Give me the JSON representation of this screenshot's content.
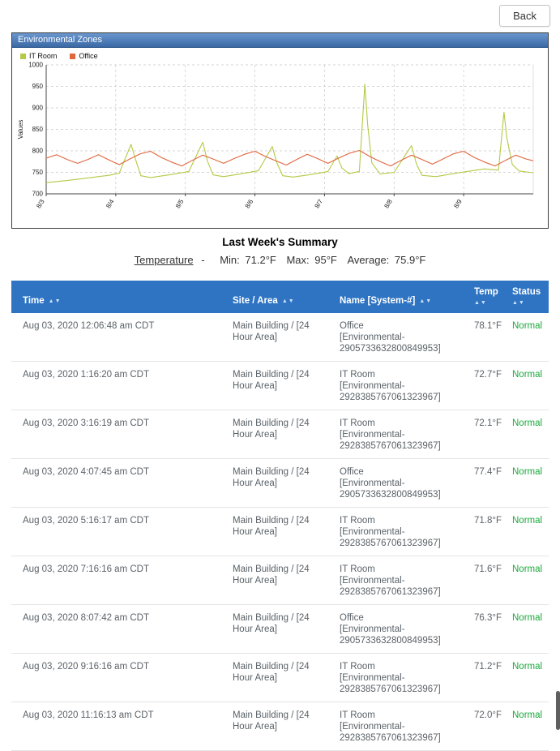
{
  "back_button": {
    "label": "Back"
  },
  "panel": {
    "title": "Environmental Zones"
  },
  "summary": {
    "title": "Last Week's Summary",
    "metric": "Temperature",
    "dash": "-",
    "min_label": "Min:",
    "min_value": "71.2°F",
    "max_label": "Max:",
    "max_value": "95°F",
    "avg_label": "Average:",
    "avg_value": "75.9°F"
  },
  "chart_data": {
    "type": "line",
    "title": "",
    "xlabel": "",
    "ylabel": "Values",
    "ylim": [
      700,
      1000
    ],
    "yticks": [
      700,
      750,
      800,
      850,
      900,
      950,
      1000
    ],
    "xlim": [
      0,
      7
    ],
    "xtick_positions": [
      0,
      1,
      2,
      3,
      4,
      5,
      6
    ],
    "xtick_labels": [
      "8/3",
      "8/4",
      "8/5",
      "8/6",
      "8/7",
      "8/8",
      "8/9"
    ],
    "grid": true,
    "legend_position": "top-left",
    "series": [
      {
        "name": "IT Room",
        "color": "#b5c944",
        "x": [
          0,
          0.3,
          0.6,
          0.9,
          1.05,
          1.22,
          1.3,
          1.36,
          1.5,
          1.8,
          2.05,
          2.25,
          2.32,
          2.4,
          2.55,
          2.85,
          3.05,
          3.25,
          3.32,
          3.4,
          3.55,
          3.85,
          4.05,
          4.18,
          4.25,
          4.35,
          4.5,
          4.58,
          4.62,
          4.68,
          4.8,
          5.0,
          5.25,
          5.32,
          5.4,
          5.6,
          5.85,
          6.05,
          6.3,
          6.5,
          6.58,
          6.62,
          6.7,
          6.8,
          6.95,
          7.0
        ],
        "y": [
          726,
          731,
          737,
          743,
          748,
          815,
          772,
          742,
          738,
          745,
          752,
          820,
          775,
          744,
          740,
          748,
          754,
          810,
          770,
          742,
          739,
          746,
          752,
          788,
          760,
          747,
          752,
          955,
          860,
          772,
          746,
          750,
          812,
          770,
          743,
          740,
          747,
          752,
          758,
          755,
          890,
          830,
          768,
          753,
          750,
          749
        ]
      },
      {
        "name": "Office",
        "color": "#e0663e",
        "x": [
          0,
          0.15,
          0.3,
          0.45,
          0.6,
          0.75,
          0.9,
          1.05,
          1.2,
          1.35,
          1.5,
          1.65,
          1.8,
          1.95,
          2.1,
          2.25,
          2.4,
          2.55,
          2.7,
          2.85,
          3.0,
          3.15,
          3.3,
          3.45,
          3.6,
          3.75,
          3.9,
          4.05,
          4.2,
          4.35,
          4.5,
          4.65,
          4.8,
          4.95,
          5.1,
          5.25,
          5.4,
          5.55,
          5.7,
          5.85,
          6.0,
          6.15,
          6.3,
          6.45,
          6.6,
          6.75,
          6.9,
          7.0
        ],
        "y": [
          783,
          791,
          780,
          771,
          780,
          791,
          779,
          768,
          781,
          793,
          799,
          785,
          774,
          765,
          778,
          790,
          781,
          771,
          782,
          792,
          799,
          787,
          777,
          767,
          780,
          792,
          782,
          771,
          783,
          794,
          801,
          787,
          775,
          765,
          778,
          790,
          780,
          769,
          781,
          793,
          799,
          785,
          774,
          765,
          778,
          790,
          781,
          777
        ]
      }
    ]
  },
  "table": {
    "status_color": "#1ba93c",
    "columns": [
      {
        "label": "Time",
        "arrows": "▲▼",
        "stacked": false
      },
      {
        "label": "Site / Area",
        "arrows": "▲▼",
        "stacked": false
      },
      {
        "label": "Name [System-#]",
        "arrows": "▲▼",
        "stacked": false
      },
      {
        "label": "Temp",
        "arrows": "▲▼",
        "stacked": true
      },
      {
        "label": "Status",
        "arrows": "▲▼",
        "stacked": true
      }
    ],
    "rows": [
      {
        "time": "Aug 03, 2020 12:06:48 am CDT",
        "site": "Main Building / [24 Hour Area]",
        "name": "Office",
        "system": "[Environmental-2905733632800849953]",
        "temp": "78.1°F",
        "status": "Normal"
      },
      {
        "time": "Aug 03, 2020 1:16:20 am CDT",
        "site": "Main Building / [24 Hour Area]",
        "name": "IT Room",
        "system": "[Environmental-2928385767061323967]",
        "temp": "72.7°F",
        "status": "Normal"
      },
      {
        "time": "Aug 03, 2020 3:16:19 am CDT",
        "site": "Main Building / [24 Hour Area]",
        "name": "IT Room",
        "system": "[Environmental-2928385767061323967]",
        "temp": "72.1°F",
        "status": "Normal"
      },
      {
        "time": "Aug 03, 2020 4:07:45 am CDT",
        "site": "Main Building / [24 Hour Area]",
        "name": "Office",
        "system": "[Environmental-2905733632800849953]",
        "temp": "77.4°F",
        "status": "Normal"
      },
      {
        "time": "Aug 03, 2020 5:16:17 am CDT",
        "site": "Main Building / [24 Hour Area]",
        "name": "IT Room",
        "system": "[Environmental-2928385767061323967]",
        "temp": "71.8°F",
        "status": "Normal"
      },
      {
        "time": "Aug 03, 2020 7:16:16 am CDT",
        "site": "Main Building / [24 Hour Area]",
        "name": "IT Room",
        "system": "[Environmental-2928385767061323967]",
        "temp": "71.6°F",
        "status": "Normal"
      },
      {
        "time": "Aug 03, 2020 8:07:42 am CDT",
        "site": "Main Building / [24 Hour Area]",
        "name": "Office",
        "system": "[Environmental-2905733632800849953]",
        "temp": "76.3°F",
        "status": "Normal"
      },
      {
        "time": "Aug 03, 2020 9:16:16 am CDT",
        "site": "Main Building / [24 Hour Area]",
        "name": "IT Room",
        "system": "[Environmental-2928385767061323967]",
        "temp": "71.2°F",
        "status": "Normal"
      },
      {
        "time": "Aug 03, 2020 11:16:13 am CDT",
        "site": "Main Building / [24 Hour Area]",
        "name": "IT Room",
        "system": "[Environmental-2928385767061323967]",
        "temp": "72.0°F",
        "status": "Normal"
      }
    ]
  }
}
